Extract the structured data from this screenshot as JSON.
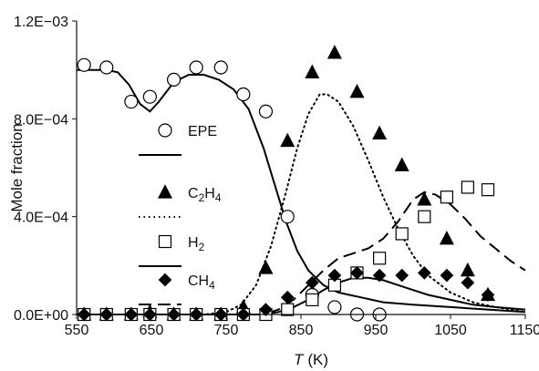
{
  "chart_data": {
    "type": "scatter",
    "title": "",
    "xlabel": {
      "var": "T",
      "unit": "(K)"
    },
    "ylabel": "Mole fraction",
    "xlim": [
      550,
      1150
    ],
    "ylim": [
      0,
      0.0012
    ],
    "grid": false,
    "legend_position": "left",
    "x_ticks": [
      {
        "value": 550,
        "label": "550"
      },
      {
        "value": 650,
        "label": "650"
      },
      {
        "value": 750,
        "label": "750"
      },
      {
        "value": 850,
        "label": "850"
      },
      {
        "value": 950,
        "label": "950"
      },
      {
        "value": 1050,
        "label": "1050"
      },
      {
        "value": 1150,
        "label": "1150"
      }
    ],
    "y_ticks": [
      {
        "value": 0,
        "label": "0.0E+00"
      },
      {
        "value": 0.0004,
        "label": "4.0E−04"
      },
      {
        "value": 0.0008,
        "label": "8.0E−04"
      },
      {
        "value": 0.0012,
        "label": "1.2E−03"
      }
    ],
    "legend": [
      {
        "species": "EPE",
        "marker": "circle",
        "label": "EPE",
        "line_style": "solid"
      },
      {
        "species": "C2H4",
        "marker": "triangle",
        "label": "C",
        "sub1": "2",
        "mid": "H",
        "sub2": "4",
        "line_style": "dotted"
      },
      {
        "species": "H2",
        "marker": "square",
        "label": "H",
        "sub1": "2",
        "line_style": "solid"
      },
      {
        "species": "CH4",
        "marker": "diamond",
        "label": "CH",
        "sub1": "4",
        "line_style": "dashed"
      }
    ],
    "series": [
      {
        "species": "EPE",
        "kind": "experiment",
        "marker": "circle",
        "color": "#000000",
        "filled": false,
        "x": [
          560,
          590,
          623,
          648,
          680,
          710,
          743,
          773,
          803,
          832,
          865,
          895,
          925,
          955
        ],
        "y": [
          0.00102,
          0.00101,
          0.00087,
          0.00089,
          0.00096,
          0.00101,
          0.00101,
          0.0009,
          0.00083,
          0.0004,
          8e-05,
          3e-05,
          0.0,
          0.0
        ]
      },
      {
        "species": "EPE",
        "kind": "model",
        "line_style": "solid",
        "color": "#000000",
        "x": [
          550,
          590,
          605,
          620,
          635,
          648,
          660,
          680,
          700,
          720,
          740,
          760,
          780,
          800,
          815,
          830,
          845,
          860,
          880,
          900,
          930,
          960,
          1000,
          1050,
          1100,
          1150
        ],
        "y": [
          0.001,
          0.001,
          0.00099,
          0.00094,
          0.00086,
          0.00083,
          0.00087,
          0.00095,
          0.00098,
          0.00098,
          0.00096,
          0.00092,
          0.00084,
          0.00068,
          0.00053,
          0.00038,
          0.00026,
          0.00018,
          0.00012,
          9e-05,
          7e-05,
          5e-05,
          4e-05,
          3e-05,
          2e-05,
          1e-05
        ]
      },
      {
        "species": "C2H4",
        "kind": "experiment",
        "marker": "triangle",
        "color": "#000000",
        "filled": true,
        "x": [
          560,
          590,
          623,
          648,
          680,
          710,
          743,
          773,
          803,
          832,
          865,
          895,
          925,
          955,
          985,
          1015,
          1045,
          1073,
          1100
        ],
        "y": [
          0.0,
          0.0,
          0.0,
          1e-05,
          0.0,
          0.0,
          0.0,
          3e-05,
          0.00019,
          0.00071,
          0.00099,
          0.00107,
          0.00091,
          0.00074,
          0.00061,
          0.00047,
          0.00031,
          0.00018,
          8e-05
        ]
      },
      {
        "species": "C2H4",
        "kind": "model",
        "line_style": "dotted",
        "color": "#000000",
        "x": [
          550,
          720,
          750,
          770,
          790,
          810,
          830,
          845,
          860,
          875,
          885,
          900,
          920,
          940,
          960,
          980,
          1000,
          1020,
          1050,
          1080,
          1110,
          1150
        ],
        "y": [
          0.0,
          0.0,
          1e-05,
          4e-05,
          0.00012,
          0.00028,
          0.0005,
          0.00068,
          0.00082,
          0.0009,
          0.0009,
          0.00087,
          0.00077,
          0.00063,
          0.00048,
          0.00035,
          0.00024,
          0.00016,
          9e-05,
          5e-05,
          3e-05,
          1e-05
        ]
      },
      {
        "species": "H2",
        "kind": "experiment",
        "marker": "square",
        "color": "#000000",
        "filled": false,
        "x": [
          560,
          590,
          623,
          648,
          680,
          710,
          743,
          773,
          803,
          832,
          865,
          895,
          925,
          955,
          985,
          1015,
          1045,
          1073,
          1100
        ],
        "y": [
          0.0,
          0.0,
          0.0,
          0.0,
          0.0,
          0.0,
          0.0,
          0.0,
          0.0,
          2e-05,
          6e-05,
          0.00012,
          0.00017,
          0.00023,
          0.00033,
          0.0004,
          0.00048,
          0.00052,
          0.00051
        ]
      },
      {
        "species": "H2",
        "kind": "model",
        "line_style": "solid",
        "color": "#000000",
        "x": [
          550,
          800,
          820,
          840,
          860,
          880,
          900,
          920,
          940,
          960,
          980,
          1000,
          1020,
          1050,
          1080,
          1110,
          1150
        ],
        "y": [
          0.0,
          0.0,
          1e-05,
          3e-05,
          6e-05,
          0.0001,
          0.00013,
          0.00015,
          0.00015,
          0.00014,
          0.00012,
          0.0001,
          8e-05,
          6e-05,
          4e-05,
          3e-05,
          2e-05
        ]
      },
      {
        "species": "CH4",
        "kind": "experiment",
        "marker": "diamond",
        "color": "#000000",
        "filled": true,
        "x": [
          560,
          590,
          623,
          648,
          680,
          710,
          743,
          773,
          803,
          832,
          865,
          895,
          925,
          955,
          985,
          1015,
          1045,
          1073,
          1100
        ],
        "y": [
          0.0,
          0.0,
          0.0,
          0.0,
          0.0,
          0.0,
          0.0,
          0.0,
          2e-05,
          7e-05,
          0.00013,
          0.00016,
          0.00017,
          0.00016,
          0.00016,
          0.00017,
          0.00016,
          0.00013,
          8e-05
        ]
      },
      {
        "species": "CH4",
        "kind": "model",
        "line_style": "dashed",
        "color": "#000000",
        "x": [
          550,
          800,
          820,
          840,
          860,
          880,
          900,
          920,
          940,
          960,
          980,
          1000,
          1015,
          1030,
          1050,
          1070,
          1090,
          1110,
          1130,
          1150
        ],
        "y": [
          0.0,
          0.0,
          2e-05,
          6e-05,
          0.00012,
          0.00018,
          0.00023,
          0.00025,
          0.00027,
          0.00031,
          0.00038,
          0.00047,
          0.0005,
          0.00049,
          0.00045,
          0.00039,
          0.00032,
          0.00027,
          0.00022,
          0.00018
        ]
      }
    ]
  }
}
